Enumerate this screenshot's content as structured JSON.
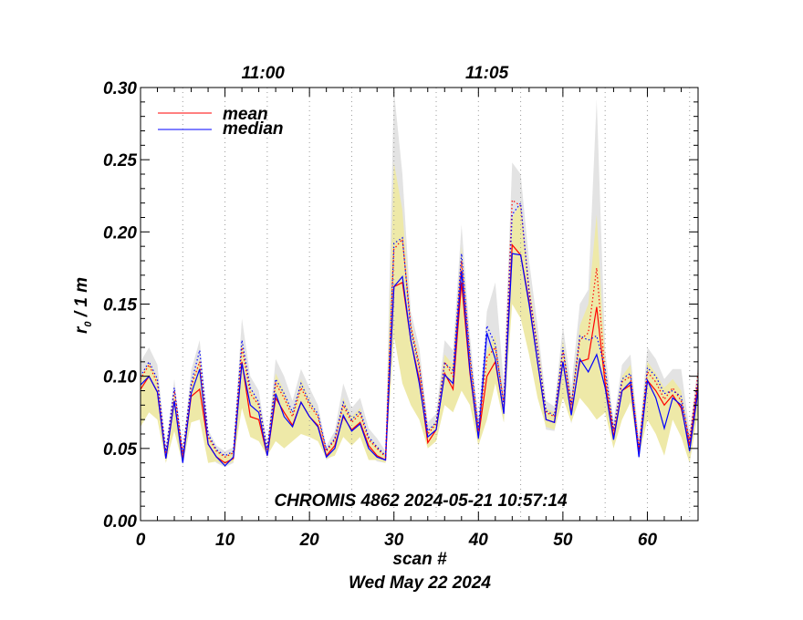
{
  "chart_data": {
    "type": "line",
    "annotation": "CHROMIS 4862 2024-05-21 10:57:14",
    "xlabel": "scan #",
    "date_label": "Wed May 22 2024",
    "ylabel_main": "r",
    "ylabel_sub": "0",
    "ylabel_rest": " / 1 m",
    "xlim": [
      0,
      66
    ],
    "ylim": [
      0,
      0.3
    ],
    "x_ticks": [
      0,
      10,
      20,
      30,
      40,
      50,
      60
    ],
    "x_tick_labels": [
      "0",
      "10",
      "20",
      "30",
      "40",
      "50",
      "60"
    ],
    "y_ticks": [
      0,
      0.05,
      0.1,
      0.15,
      0.2,
      0.25,
      0.3
    ],
    "y_tick_labels": [
      "0.00",
      "0.05",
      "0.10",
      "0.15",
      "0.20",
      "0.25",
      "0.30"
    ],
    "time_labels": [
      {
        "scan": 14.5,
        "label": "11:00"
      },
      {
        "scan": 41,
        "label": "11:05"
      }
    ],
    "minute_grid_scans": [
      0,
      5,
      10,
      15,
      20,
      25,
      30,
      35,
      40,
      45,
      50,
      55,
      60,
      65
    ],
    "legend": {
      "position": "top-left",
      "entries": [
        {
          "name": "mean",
          "color": "#ff0000"
        },
        {
          "name": "median",
          "color": "#0000ff"
        }
      ]
    },
    "series": [
      {
        "name": "mean",
        "color": "#ff0000",
        "style": "solid",
        "values": [
          0.091,
          0.1,
          0.089,
          0.043,
          0.083,
          0.042,
          0.086,
          0.091,
          0.053,
          0.044,
          0.04,
          0.043,
          0.11,
          0.072,
          0.07,
          0.045,
          0.085,
          0.075,
          0.066,
          0.082,
          0.072,
          0.066,
          0.045,
          0.052,
          0.072,
          0.063,
          0.068,
          0.052,
          0.045,
          0.042,
          0.162,
          0.165,
          0.125,
          0.098,
          0.054,
          0.063,
          0.102,
          0.091,
          0.165,
          0.102,
          0.058,
          0.1,
          0.11,
          0.075,
          0.191,
          0.184,
          0.152,
          0.11,
          0.07,
          0.068,
          0.11,
          0.075,
          0.11,
          0.112,
          0.148,
          0.095,
          0.058,
          0.09,
          0.094,
          0.046,
          0.097,
          0.09,
          0.08,
          0.087,
          0.078,
          0.052,
          0.095
        ]
      },
      {
        "name": "median",
        "color": "#0000ff",
        "style": "solid",
        "values": [
          0.094,
          0.1,
          0.089,
          0.043,
          0.083,
          0.04,
          0.088,
          0.105,
          0.053,
          0.044,
          0.038,
          0.044,
          0.109,
          0.08,
          0.075,
          0.045,
          0.088,
          0.072,
          0.065,
          0.082,
          0.072,
          0.065,
          0.044,
          0.05,
          0.073,
          0.062,
          0.067,
          0.05,
          0.044,
          0.042,
          0.162,
          0.169,
          0.125,
          0.095,
          0.058,
          0.063,
          0.101,
          0.095,
          0.173,
          0.104,
          0.057,
          0.13,
          0.112,
          0.074,
          0.185,
          0.184,
          0.15,
          0.11,
          0.07,
          0.068,
          0.11,
          0.073,
          0.112,
          0.103,
          0.115,
          0.092,
          0.056,
          0.09,
          0.096,
          0.044,
          0.097,
          0.085,
          0.064,
          0.085,
          0.08,
          0.048,
          0.09
        ]
      },
      {
        "name": "mean upper",
        "color": "#ff0000",
        "style": "dotted",
        "values": [
          0.098,
          0.108,
          0.095,
          0.047,
          0.09,
          0.046,
          0.093,
          0.11,
          0.058,
          0.048,
          0.044,
          0.047,
          0.12,
          0.088,
          0.08,
          0.049,
          0.095,
          0.085,
          0.072,
          0.092,
          0.08,
          0.072,
          0.048,
          0.056,
          0.08,
          0.068,
          0.074,
          0.056,
          0.05,
          0.044,
          0.188,
          0.195,
          0.135,
          0.108,
          0.06,
          0.067,
          0.11,
          0.1,
          0.18,
          0.112,
          0.062,
          0.113,
          0.12,
          0.082,
          0.222,
          0.218,
          0.16,
          0.12,
          0.075,
          0.072,
          0.118,
          0.08,
          0.125,
          0.13,
          0.175,
          0.1,
          0.062,
          0.096,
          0.1,
          0.05,
          0.103,
          0.096,
          0.084,
          0.092,
          0.083,
          0.056,
          0.102
        ]
      },
      {
        "name": "median upper",
        "color": "#0000ff",
        "style": "dotted",
        "values": [
          0.1,
          0.11,
          0.098,
          0.048,
          0.092,
          0.047,
          0.095,
          0.118,
          0.06,
          0.049,
          0.045,
          0.048,
          0.125,
          0.092,
          0.082,
          0.05,
          0.098,
          0.088,
          0.075,
          0.095,
          0.082,
          0.074,
          0.049,
          0.057,
          0.082,
          0.07,
          0.076,
          0.058,
          0.051,
          0.045,
          0.192,
          0.196,
          0.132,
          0.106,
          0.062,
          0.068,
          0.109,
          0.104,
          0.185,
          0.115,
          0.064,
          0.135,
          0.122,
          0.08,
          0.212,
          0.22,
          0.158,
          0.118,
          0.076,
          0.073,
          0.12,
          0.08,
          0.128,
          0.125,
          0.128,
          0.105,
          0.063,
          0.098,
          0.102,
          0.049,
          0.106,
          0.1,
          0.088,
          0.09,
          0.086,
          0.054,
          0.098
        ]
      }
    ],
    "bands": [
      {
        "name": "range",
        "color": "#e3e3e3",
        "lower": [
          0.075,
          0.085,
          0.08,
          0.04,
          0.07,
          0.038,
          0.078,
          0.085,
          0.046,
          0.04,
          0.037,
          0.04,
          0.095,
          0.066,
          0.063,
          0.043,
          0.075,
          0.062,
          0.06,
          0.074,
          0.066,
          0.06,
          0.042,
          0.046,
          0.065,
          0.056,
          0.062,
          0.046,
          0.041,
          0.04,
          0.125,
          0.14,
          0.105,
          0.085,
          0.05,
          0.057,
          0.09,
          0.082,
          0.14,
          0.09,
          0.052,
          0.092,
          0.098,
          0.068,
          0.16,
          0.162,
          0.132,
          0.098,
          0.063,
          0.062,
          0.095,
          0.067,
          0.1,
          0.098,
          0.12,
          0.085,
          0.052,
          0.08,
          0.085,
          0.042,
          0.088,
          0.078,
          0.07,
          0.076,
          0.068,
          0.046,
          0.08
        ],
        "upper": [
          0.11,
          0.12,
          0.108,
          0.05,
          0.098,
          0.049,
          0.104,
          0.125,
          0.063,
          0.052,
          0.048,
          0.051,
          0.14,
          0.1,
          0.09,
          0.053,
          0.112,
          0.1,
          0.083,
          0.105,
          0.092,
          0.08,
          0.052,
          0.062,
          0.095,
          0.078,
          0.085,
          0.064,
          0.057,
          0.048,
          0.298,
          0.24,
          0.145,
          0.12,
          0.068,
          0.074,
          0.125,
          0.118,
          0.205,
          0.128,
          0.07,
          0.145,
          0.165,
          0.095,
          0.248,
          0.24,
          0.18,
          0.135,
          0.083,
          0.079,
          0.135,
          0.092,
          0.15,
          0.16,
          0.292,
          0.118,
          0.069,
          0.108,
          0.115,
          0.057,
          0.12,
          0.112,
          0.098,
          0.105,
          0.105,
          0.062,
          0.108
        ]
      },
      {
        "name": "quartile",
        "color": "#eee9a8",
        "lower": [
          0.065,
          0.075,
          0.07,
          0.04,
          0.062,
          0.039,
          0.068,
          0.07,
          0.04,
          0.041,
          0.038,
          0.041,
          0.078,
          0.058,
          0.055,
          0.045,
          0.055,
          0.05,
          0.055,
          0.06,
          0.058,
          0.055,
          0.043,
          0.045,
          0.058,
          0.052,
          0.058,
          0.042,
          0.042,
          0.04,
          0.128,
          0.095,
          0.08,
          0.07,
          0.05,
          0.055,
          0.08,
          0.075,
          0.09,
          0.08,
          0.052,
          0.07,
          0.095,
          0.068,
          0.15,
          0.14,
          0.115,
          0.085,
          0.065,
          0.063,
          0.085,
          0.068,
          0.085,
          0.078,
          0.07,
          0.075,
          0.05,
          0.07,
          0.082,
          0.045,
          0.07,
          0.06,
          0.045,
          0.07,
          0.058,
          0.04,
          0.075
        ],
        "upper": [
          0.1,
          0.11,
          0.098,
          0.048,
          0.09,
          0.046,
          0.095,
          0.112,
          0.06,
          0.049,
          0.045,
          0.048,
          0.125,
          0.092,
          0.082,
          0.05,
          0.102,
          0.09,
          0.075,
          0.098,
          0.084,
          0.074,
          0.049,
          0.058,
          0.085,
          0.072,
          0.078,
          0.058,
          0.052,
          0.045,
          0.248,
          0.215,
          0.138,
          0.112,
          0.062,
          0.069,
          0.115,
          0.108,
          0.19,
          0.118,
          0.066,
          0.118,
          0.128,
          0.085,
          0.21,
          0.22,
          0.165,
          0.125,
          0.078,
          0.075,
          0.125,
          0.085,
          0.135,
          0.15,
          0.212,
          0.108,
          0.065,
          0.1,
          0.108,
          0.052,
          0.11,
          0.102,
          0.092,
          0.098,
          0.09,
          0.058,
          0.1
        ]
      }
    ]
  }
}
